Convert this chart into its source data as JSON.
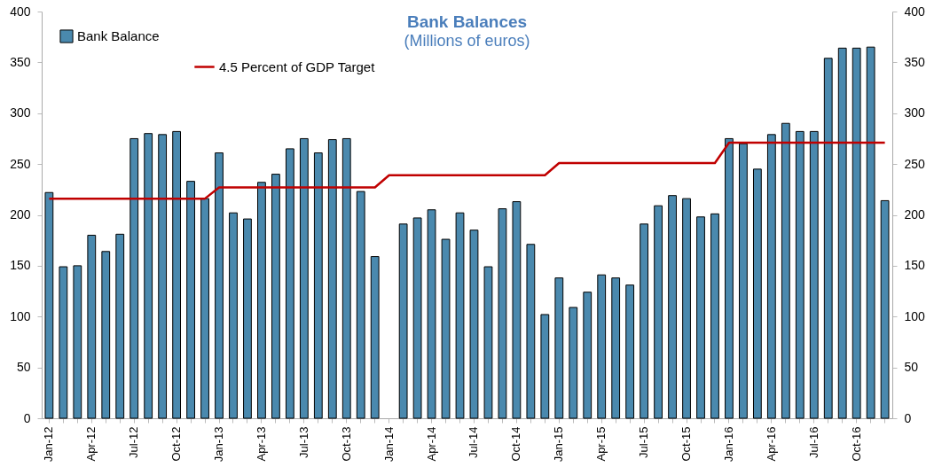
{
  "chart_data": {
    "type": "bar",
    "title": "Bank Balances",
    "subtitle": "(Millions of euros)",
    "categories": [
      "Jan-12",
      null,
      null,
      "Apr-12",
      null,
      null,
      "Jul-12",
      null,
      null,
      "Oct-12",
      null,
      null,
      "Jan-13",
      null,
      null,
      "Apr-13",
      null,
      null,
      "Jul-13",
      null,
      null,
      "Oct-13",
      null,
      null,
      "Jan-14",
      null,
      null,
      "Apr-14",
      null,
      null,
      "Jul-14",
      null,
      null,
      "Oct-14",
      null,
      null,
      "Jan-15",
      null,
      null,
      "Apr-15",
      null,
      null,
      "Jul-15",
      null,
      null,
      "Oct-15",
      null,
      null,
      "Jan-16",
      null,
      null,
      "Apr-16",
      null,
      null,
      "Jul-16",
      null,
      null,
      "Oct-16",
      null,
      null
    ],
    "series": [
      {
        "name": "Bank Balance",
        "color": "#4a89ae",
        "values": [
          222,
          149,
          150,
          180,
          164,
          181,
          275,
          280,
          279,
          282,
          233,
          216,
          261,
          202,
          196,
          232,
          240,
          265,
          275,
          261,
          274,
          275,
          223,
          159,
          null,
          191,
          197,
          205,
          176,
          202,
          185,
          149,
          206,
          213,
          171,
          102,
          138,
          109,
          124,
          141,
          138,
          131,
          191,
          209,
          219,
          216,
          198,
          201,
          275,
          270,
          245,
          279,
          290,
          282,
          282,
          354,
          364,
          364,
          365,
          214
        ]
      },
      {
        "name": "4.5 Percent of GDP Target",
        "type": "line",
        "color": "#c00000",
        "values": [
          216,
          216,
          216,
          216,
          216,
          216,
          216,
          216,
          216,
          216,
          216,
          216,
          227,
          227,
          227,
          227,
          227,
          227,
          227,
          227,
          227,
          227,
          227,
          227,
          239,
          239,
          239,
          239,
          239,
          239,
          239,
          239,
          239,
          239,
          239,
          239,
          251,
          251,
          251,
          251,
          251,
          251,
          251,
          251,
          251,
          251,
          251,
          251,
          271,
          271,
          271,
          271,
          271,
          271,
          271,
          271,
          271,
          271,
          271,
          271
        ]
      }
    ],
    "ylim": [
      0,
      400
    ],
    "yticks": [
      0,
      50,
      100,
      150,
      200,
      250,
      300,
      350,
      400
    ],
    "y2lim": [
      0,
      400
    ],
    "y2ticks": [
      0,
      50,
      100,
      150,
      200,
      250,
      300,
      350,
      400
    ],
    "legend": "top left",
    "marker": "none",
    "line_style": "solid"
  }
}
